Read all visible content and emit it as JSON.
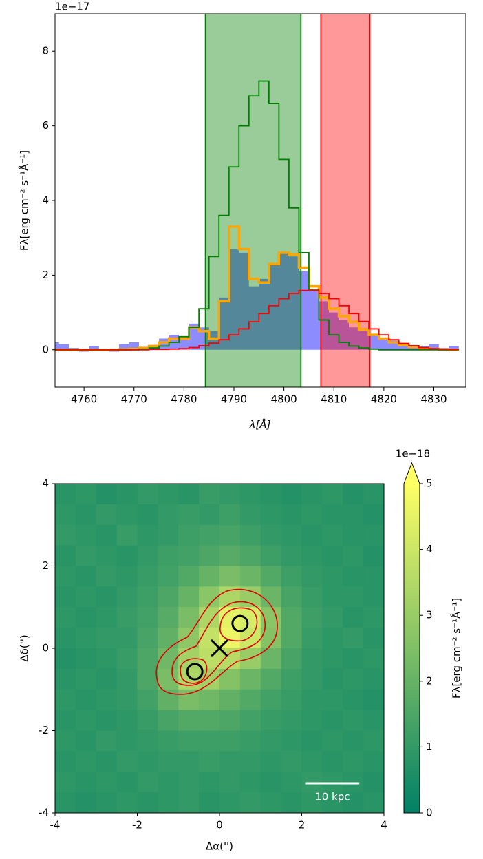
{
  "chart_data": [
    {
      "type": "step",
      "offset_text": "1e−17",
      "x_label": "λ[Å]",
      "y_label": "Fλ[erg cm⁻² s⁻¹Å⁻¹]",
      "xlim": [
        4754.2,
        4836.4
      ],
      "ylim": [
        -1,
        9
      ],
      "xticks": [
        4760,
        4770,
        4780,
        4790,
        4800,
        4810,
        4820,
        4830
      ],
      "yticks": [
        0,
        2,
        4,
        6,
        8
      ],
      "x": [
        4754,
        4756,
        4758,
        4760,
        4762,
        4764,
        4766,
        4768,
        4770,
        4772,
        4774,
        4776,
        4778,
        4780,
        4782,
        4784,
        4786,
        4788,
        4790,
        4792,
        4794,
        4796,
        4798,
        4800,
        4802,
        4804,
        4806,
        4808,
        4810,
        4812,
        4814,
        4816,
        4818,
        4820,
        4822,
        4824,
        4826,
        4828,
        4830,
        4832,
        4834
      ],
      "spans": [
        {
          "xmin": 4784.3,
          "xmax": 4803.4,
          "color": "#008000"
        },
        {
          "xmin": 4807.4,
          "xmax": 4817.2,
          "color": "#ff0000"
        }
      ],
      "series": [
        {
          "color": "#0000ff",
          "fill": true,
          "values": [
            0.2,
            0.15,
            0.05,
            -0.05,
            0.1,
            0,
            -0.05,
            0.15,
            0.2,
            0.05,
            0.1,
            0.3,
            0.4,
            0.3,
            0.7,
            0.6,
            0.5,
            1.4,
            2.7,
            2.6,
            1.7,
            1.9,
            2.3,
            2.6,
            2.5,
            2.1,
            1.6,
            1.3,
            1.0,
            0.8,
            0.6,
            0.5,
            0.4,
            0.3,
            0.25,
            0.15,
            0.1,
            0.1,
            0.15,
            0.05,
            0.1
          ]
        },
        {
          "color": "#ffa500",
          "linewidth": 3.5,
          "values": [
            0,
            0,
            0,
            0,
            0,
            0,
            0,
            0.01,
            0.02,
            0.05,
            0.1,
            0.2,
            0.3,
            0.3,
            0.6,
            0.5,
            0.3,
            1.3,
            3.3,
            2.7,
            1.9,
            1.8,
            2.3,
            2.6,
            2.55,
            2.2,
            1.7,
            1.4,
            1.1,
            0.9,
            0.75,
            0.55,
            0.4,
            0.3,
            0.2,
            0.13,
            0.08,
            0.04,
            0.02,
            0.01,
            0
          ]
        },
        {
          "color": "#008000",
          "linewidth": 1.8,
          "values": [
            0,
            0,
            0,
            0,
            0,
            0,
            0,
            0,
            0,
            0.02,
            0.05,
            0.1,
            0.2,
            0.35,
            0.6,
            1.1,
            2.5,
            3.6,
            4.9,
            6.0,
            6.8,
            7.2,
            6.6,
            5.1,
            3.8,
            2.6,
            1.6,
            0.8,
            0.4,
            0.2,
            0.1,
            0.05,
            0.02,
            0,
            0,
            0,
            0,
            0,
            0,
            0,
            0
          ]
        },
        {
          "color": "#ff0000",
          "linewidth": 1.8,
          "values": [
            0,
            0,
            0,
            0,
            0,
            0,
            0,
            0,
            0,
            0,
            0.01,
            0.01,
            0.02,
            0.03,
            0.06,
            0.11,
            0.18,
            0.27,
            0.4,
            0.56,
            0.75,
            0.97,
            1.18,
            1.37,
            1.51,
            1.59,
            1.59,
            1.51,
            1.37,
            1.18,
            0.97,
            0.76,
            0.56,
            0.4,
            0.27,
            0.17,
            0.11,
            0.06,
            0.03,
            0.02,
            0.01
          ]
        }
      ]
    },
    {
      "type": "heatmap",
      "x_label": "Δα('')",
      "y_label": "Δδ('')",
      "xlim": [
        -4,
        4
      ],
      "ylim": [
        -4,
        4
      ],
      "xticks": [
        -4,
        -2,
        0,
        2,
        4
      ],
      "yticks": [
        -4,
        -2,
        0,
        2,
        4
      ],
      "x": [
        -3.75,
        -3.25,
        -2.75,
        -2.25,
        -1.75,
        -1.25,
        -0.75,
        -0.25,
        0.25,
        0.75,
        1.25,
        1.75,
        2.25,
        2.75,
        3.25,
        3.75
      ],
      "y": [
        3.75,
        3.25,
        2.75,
        2.25,
        1.75,
        1.25,
        0.75,
        0.25,
        -0.25,
        -0.75,
        -1.25,
        -1.75,
        -2.25,
        -2.75,
        -3.25,
        -3.75
      ],
      "z": [
        [
          0.8,
          0.9,
          0.7,
          0.8,
          1.0,
          0.9,
          0.8,
          1.1,
          1.0,
          0.9,
          0.8,
          0.7,
          0.8,
          0.9,
          0.7,
          0.8
        ],
        [
          0.9,
          0.8,
          1.0,
          0.9,
          0.8,
          1.0,
          1.1,
          1.0,
          1.2,
          1.0,
          0.9,
          0.8,
          0.9,
          0.8,
          0.8,
          0.7
        ],
        [
          1.0,
          0.9,
          0.8,
          1.1,
          0.9,
          1.0,
          1.2,
          1.3,
          1.4,
          1.2,
          1.0,
          0.9,
          0.8,
          0.9,
          0.8,
          0.8
        ],
        [
          0.8,
          1.0,
          0.9,
          0.8,
          1.0,
          1.2,
          1.3,
          1.5,
          1.7,
          1.5,
          1.2,
          1.0,
          0.9,
          0.8,
          0.9,
          0.7
        ],
        [
          0.9,
          0.8,
          1.0,
          0.9,
          1.1,
          1.3,
          1.6,
          2.0,
          2.4,
          2.1,
          1.6,
          1.2,
          1.0,
          0.9,
          0.8,
          0.8
        ],
        [
          0.8,
          0.9,
          0.8,
          1.0,
          1.2,
          1.5,
          2.0,
          2.7,
          3.4,
          3.0,
          2.1,
          1.4,
          1.1,
          0.9,
          0.9,
          0.8
        ],
        [
          0.9,
          0.8,
          0.9,
          1.1,
          1.3,
          1.7,
          2.4,
          3.4,
          4.5,
          4.2,
          2.7,
          1.6,
          1.2,
          1.0,
          0.8,
          0.9
        ],
        [
          0.8,
          0.9,
          1.0,
          1.0,
          1.4,
          1.9,
          2.8,
          3.8,
          4.6,
          4.0,
          2.6,
          1.6,
          1.1,
          0.9,
          1.0,
          0.8
        ],
        [
          0.7,
          0.8,
          0.9,
          1.1,
          1.5,
          2.2,
          3.2,
          3.7,
          3.6,
          3.0,
          2.1,
          1.4,
          1.0,
          0.9,
          0.8,
          0.9
        ],
        [
          0.8,
          0.9,
          0.8,
          1.0,
          1.5,
          2.4,
          3.4,
          3.2,
          2.6,
          2.1,
          1.6,
          1.2,
          1.0,
          0.8,
          0.9,
          0.8
        ],
        [
          0.9,
          0.8,
          0.9,
          1.0,
          1.3,
          1.9,
          2.4,
          2.2,
          1.9,
          1.6,
          1.3,
          1.1,
          0.9,
          0.9,
          0.8,
          0.7
        ],
        [
          0.8,
          0.9,
          0.8,
          0.9,
          1.1,
          1.4,
          1.6,
          1.6,
          1.5,
          1.3,
          1.1,
          1.0,
          0.9,
          0.8,
          0.9,
          0.8
        ],
        [
          0.9,
          0.8,
          1.0,
          0.9,
          1.0,
          1.1,
          1.2,
          1.2,
          1.2,
          1.1,
          1.0,
          0.9,
          0.8,
          0.9,
          0.8,
          0.9
        ],
        [
          0.8,
          0.9,
          0.8,
          1.0,
          0.9,
          1.0,
          1.0,
          1.1,
          1.0,
          1.0,
          0.9,
          1.0,
          0.9,
          0.8,
          0.9,
          0.8
        ],
        [
          0.9,
          0.8,
          0.9,
          0.8,
          1.0,
          0.9,
          1.0,
          0.9,
          1.0,
          0.9,
          0.8,
          0.9,
          1.0,
          0.9,
          0.8,
          0.7
        ],
        [
          0.8,
          0.7,
          0.8,
          0.9,
          0.8,
          0.9,
          1.0,
          0.8,
          0.9,
          1.0,
          0.9,
          0.8,
          0.9,
          0.8,
          0.7,
          0.8
        ]
      ],
      "colormap": [
        "#008066",
        "#ffff66"
      ],
      "clim": [
        0,
        5
      ],
      "cticks": [
        0,
        1,
        2,
        3,
        4,
        5
      ],
      "colorbar_offset_text": "1e−18",
      "colorbar_label": "Fλ[erg cm⁻² s⁻¹Å⁻¹]",
      "points": [
        {
          "x": -0.6,
          "y": -0.57,
          "marker": "o"
        },
        {
          "x": 0.5,
          "y": 0.6,
          "marker": "o"
        },
        {
          "x": 0,
          "y": 0,
          "marker": "x"
        }
      ],
      "scalebar": {
        "label": "10 kpc",
        "x": [
          2.1,
          3.4
        ],
        "y": -3.28
      }
    }
  ]
}
